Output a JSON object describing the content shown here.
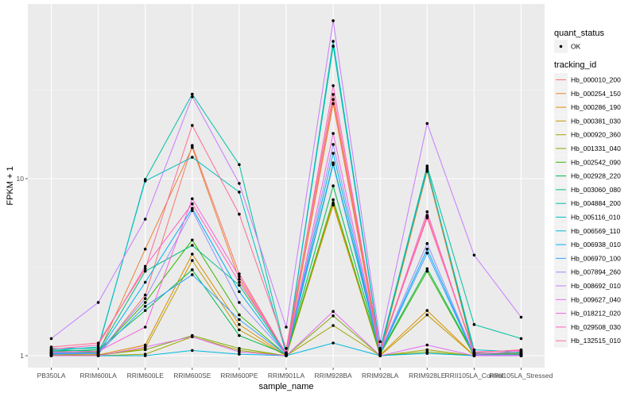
{
  "chart_data": {
    "type": "line",
    "title": "",
    "xlabel": "sample_name",
    "ylabel": "FPKM + 1",
    "yscale": "log10",
    "ylim": [
      0.9,
      95
    ],
    "yticks": [
      1,
      10
    ],
    "ytick_labels": [
      "1",
      "10"
    ],
    "grid": true,
    "categories": [
      "PB350LA",
      "RRIM600LA",
      "RRIM600LE",
      "RRIM600SE",
      "RRIM600PE",
      "RRIM901LA",
      "RRIM928BA",
      "RRIM928LA",
      "RRIM928LE",
      "RRII105LA_Control",
      "RRII105LA_Stressed"
    ],
    "legend_position": "right",
    "legends": [
      {
        "title": "quant_status",
        "entries": [
          {
            "label": "OK",
            "marker": "point"
          }
        ]
      },
      {
        "title": "tracking_id"
      }
    ],
    "series": [
      {
        "name": "Hb_000010_200",
        "color": "#F8766D",
        "values": [
          1.05,
          1.02,
          2.2,
          15.4,
          2.9,
          1.02,
          28.0,
          1.05,
          6.2,
          1.02,
          1.03
        ]
      },
      {
        "name": "Hb_000254_150",
        "color": "#EA8331",
        "values": [
          1.03,
          1.03,
          4.0,
          15.0,
          2.7,
          1.01,
          26.5,
          1.03,
          11.0,
          1.01,
          1.02
        ]
      },
      {
        "name": "Hb_000286_190",
        "color": "#D89000",
        "values": [
          1.02,
          1.01,
          1.15,
          3.75,
          1.5,
          1.0,
          7.1,
          1.01,
          1.8,
          1.0,
          1.0
        ]
      },
      {
        "name": "Hb_000381_030",
        "color": "#C09B00",
        "values": [
          1.01,
          1.0,
          1.1,
          3.45,
          1.4,
          1.0,
          7.3,
          1.0,
          1.7,
          1.0,
          1.0
        ]
      },
      {
        "name": "Hb_000920_360",
        "color": "#A3A500",
        "values": [
          1.0,
          1.0,
          1.02,
          1.28,
          1.07,
          1.0,
          1.48,
          1.0,
          1.08,
          1.0,
          1.0
        ]
      },
      {
        "name": "Hb_001331_040",
        "color": "#7CAE00",
        "values": [
          1.0,
          1.01,
          1.08,
          1.3,
          1.1,
          1.0,
          1.68,
          1.0,
          1.05,
          1.0,
          1.0
        ]
      },
      {
        "name": "Hb_002542_090",
        "color": "#39B600",
        "values": [
          1.04,
          1.05,
          2.0,
          4.5,
          1.7,
          1.01,
          7.6,
          1.02,
          3.0,
          1.0,
          1.01
        ]
      },
      {
        "name": "Hb_002928_220",
        "color": "#00BB4E",
        "values": [
          1.06,
          1.08,
          1.8,
          3.06,
          1.3,
          1.02,
          9.1,
          1.04,
          3.1,
          1.02,
          1.02
        ]
      },
      {
        "name": "Hb_003060_080",
        "color": "#00BF7D",
        "values": [
          1.08,
          1.06,
          3.0,
          4.2,
          2.5,
          1.02,
          12.3,
          1.05,
          11.5,
          1.03,
          1.04
        ]
      },
      {
        "name": "Hb_004884_200",
        "color": "#00C1A3",
        "values": [
          1.1,
          1.1,
          9.9,
          30.0,
          12.0,
          1.03,
          56.0,
          1.08,
          11.8,
          1.5,
          1.25
        ]
      },
      {
        "name": "Hb_005116_010",
        "color": "#00BFC4",
        "values": [
          1.07,
          1.12,
          9.7,
          13.2,
          8.4,
          1.03,
          59.7,
          1.1,
          11.3,
          1.08,
          1.05
        ]
      },
      {
        "name": "Hb_006569_110",
        "color": "#00BAE0",
        "values": [
          1.0,
          1.0,
          1.0,
          1.07,
          1.02,
          1.0,
          1.18,
          1.0,
          1.03,
          1.0,
          1.0
        ]
      },
      {
        "name": "Hb_006938_010",
        "color": "#00B0F6",
        "values": [
          1.03,
          1.04,
          2.6,
          6.8,
          2.3,
          1.01,
          13.9,
          1.04,
          4.0,
          1.01,
          1.0
        ]
      },
      {
        "name": "Hb_006970_100",
        "color": "#35A2FF",
        "values": [
          1.02,
          1.03,
          1.9,
          2.87,
          1.6,
          1.01,
          12.0,
          1.03,
          3.8,
          1.0,
          1.0
        ]
      },
      {
        "name": "Hb_007894_260",
        "color": "#9590FF",
        "values": [
          1.04,
          1.04,
          2.1,
          6.6,
          2.0,
          1.02,
          15.6,
          1.05,
          4.3,
          1.01,
          1.01
        ]
      },
      {
        "name": "Hb_008692_010",
        "color": "#C77CFF",
        "values": [
          1.25,
          2.0,
          5.9,
          29.0,
          9.4,
          1.45,
          78.0,
          1.2,
          20.5,
          3.7,
          1.65
        ]
      },
      {
        "name": "Hb_009627_040",
        "color": "#E76BF3",
        "values": [
          1.0,
          1.0,
          1.12,
          1.28,
          1.05,
          1.0,
          1.78,
          1.0,
          1.15,
          1.0,
          1.0
        ]
      },
      {
        "name": "Hb_018212_020",
        "color": "#FA62DB",
        "values": [
          1.05,
          1.06,
          1.45,
          7.7,
          2.8,
          1.02,
          18.0,
          1.06,
          6.5,
          1.02,
          1.06
        ]
      },
      {
        "name": "Hb_029508_030",
        "color": "#FF62BC",
        "values": [
          1.09,
          1.15,
          3.2,
          7.2,
          2.6,
          1.04,
          33.5,
          1.07,
          6.0,
          1.05,
          1.07
        ]
      },
      {
        "name": "Hb_132515_010",
        "color": "#FF6C91",
        "values": [
          1.12,
          1.18,
          3.1,
          20.0,
          6.3,
          1.1,
          29.9,
          1.09,
          6.1,
          1.04,
          1.08
        ]
      }
    ]
  }
}
